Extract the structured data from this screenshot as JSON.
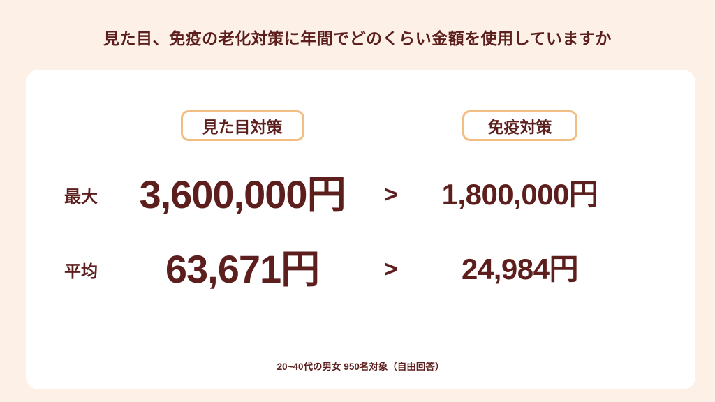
{
  "title": "見た目、免疫の老化対策に年間でどのくらい金額を使用していますか",
  "columns": [
    {
      "label": "見た目対策"
    },
    {
      "label": "免疫対策"
    }
  ],
  "comparison_symbol": ">",
  "rows": [
    {
      "label": "最大",
      "appearance": "3,600,000円",
      "immunity": "1,800,000円"
    },
    {
      "label": "平均",
      "appearance": "63,671円",
      "immunity": "24,984円"
    }
  ],
  "footnote": "20~40代の男女 950名対象（自由回答）",
  "colors": {
    "background": "#fdf0e6",
    "card": "#ffffff",
    "text": "#5c1f1d",
    "badge_border": "#f2bd83"
  },
  "chart_data": {
    "type": "table",
    "title": "見た目、免疫の老化対策に年間でどのくらい金額を使用していますか",
    "columns": [
      "見た目対策",
      "免疫対策"
    ],
    "rows": [
      {
        "label": "最大",
        "values": [
          3600000,
          1800000
        ],
        "display": [
          "3,600,000円",
          "1,800,000円"
        ],
        "relation": ">"
      },
      {
        "label": "平均",
        "values": [
          63671,
          24984
        ],
        "display": [
          "63,671円",
          "24,984円"
        ],
        "relation": ">"
      }
    ],
    "unit": "円",
    "note": "20~40代の男女 950名対象（自由回答）",
    "layout": "comparison table, appearance column left (larger values), immunity column right"
  }
}
